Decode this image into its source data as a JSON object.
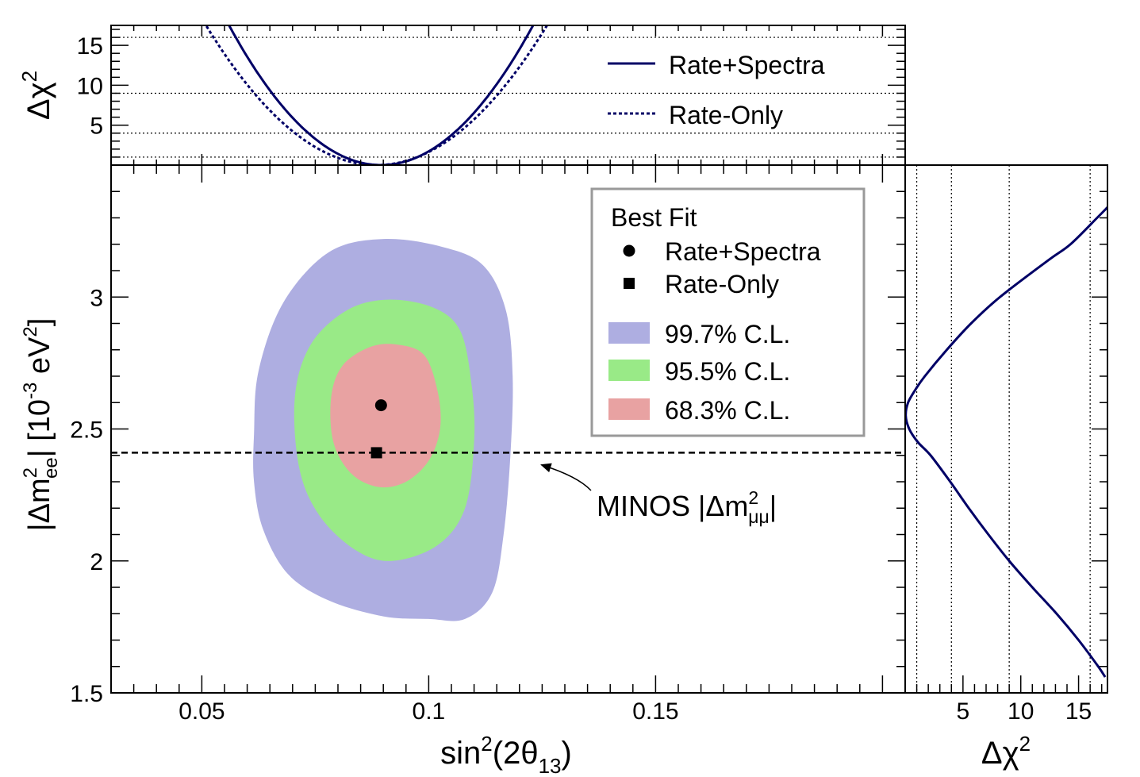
{
  "chart_data": [
    {
      "panel": "main",
      "type": "contour",
      "xlabel": {
        "main": "sin",
        "sup": "2",
        "mid": "(2θ",
        "sub": "13",
        "end": ")"
      },
      "ylabel": {
        "pre": "|Δm",
        "sup": "2",
        "sub": "ee",
        "mid": "| [10",
        "sup2": "-3",
        "end": " eV",
        "sup3": "2",
        "close": "]"
      },
      "xlim": [
        0.03,
        0.205
      ],
      "ylim": [
        1.5,
        3.5
      ],
      "xticks": [
        {
          "v": 0.05,
          "label": "0.05"
        },
        {
          "v": 0.1,
          "label": "0.1"
        },
        {
          "v": 0.15,
          "label": "0.15"
        }
      ],
      "yticks": [
        {
          "v": 1.5,
          "label": "1.5"
        },
        {
          "v": 2.0,
          "label": "2"
        },
        {
          "v": 2.5,
          "label": "2.5"
        },
        {
          "v": 3.0,
          "label": "3"
        }
      ],
      "regions": [
        {
          "name": "99.7% C.L.",
          "color": "#aeaee1",
          "points": [
            [
              0.0615,
              2.48
            ],
            [
              0.0625,
              2.72
            ],
            [
              0.068,
              2.98
            ],
            [
              0.078,
              3.17
            ],
            [
              0.09,
              3.22
            ],
            [
              0.103,
              3.19
            ],
            [
              0.112,
              3.12
            ],
            [
              0.117,
              2.95
            ],
            [
              0.1185,
              2.7
            ],
            [
              0.118,
              2.4
            ],
            [
              0.1165,
              2.1
            ],
            [
              0.114,
              1.88
            ],
            [
              0.108,
              1.78
            ],
            [
              0.1,
              1.78
            ],
            [
              0.09,
              1.79
            ],
            [
              0.078,
              1.85
            ],
            [
              0.069,
              1.95
            ],
            [
              0.0635,
              2.12
            ],
            [
              0.0615,
              2.3
            ]
          ]
        },
        {
          "name": "95.5% C.L.",
          "color": "#99ea87",
          "points": [
            [
              0.0705,
              2.62
            ],
            [
              0.074,
              2.82
            ],
            [
              0.082,
              2.95
            ],
            [
              0.091,
              2.99
            ],
            [
              0.101,
              2.96
            ],
            [
              0.107,
              2.87
            ],
            [
              0.1095,
              2.66
            ],
            [
              0.11,
              2.45
            ],
            [
              0.108,
              2.2
            ],
            [
              0.102,
              2.06
            ],
            [
              0.092,
              2.0
            ],
            [
              0.084,
              2.04
            ],
            [
              0.076,
              2.17
            ],
            [
              0.0715,
              2.35
            ]
          ]
        },
        {
          "name": "68.3% C.L.",
          "color": "#e8a2a2",
          "points": [
            [
              0.0785,
              2.62
            ],
            [
              0.081,
              2.74
            ],
            [
              0.087,
              2.81
            ],
            [
              0.093,
              2.82
            ],
            [
              0.099,
              2.78
            ],
            [
              0.102,
              2.64
            ],
            [
              0.1025,
              2.5
            ],
            [
              0.1,
              2.38
            ],
            [
              0.095,
              2.3
            ],
            [
              0.089,
              2.28
            ],
            [
              0.083,
              2.33
            ],
            [
              0.079,
              2.45
            ]
          ]
        }
      ],
      "best_fit": [
        {
          "name": "Rate+Spectra",
          "marker": "circle",
          "x": 0.0895,
          "y": 2.59
        },
        {
          "name": "Rate-Only",
          "marker": "square",
          "x": 0.0885,
          "y": 2.41
        }
      ],
      "reference_line": {
        "y": 2.41,
        "style": "dashed"
      },
      "annotation": {
        "text": "MINOS |Δm",
        "sup": "2",
        "sub": "μμ",
        "end": "|",
        "arrow_to": {
          "x": 0.1245,
          "y": 2.4
        }
      },
      "legend": {
        "title": "Best Fit",
        "entries": [
          {
            "label": "Rate+Spectra",
            "marker": "circle"
          },
          {
            "label": "Rate-Only",
            "marker": "square"
          },
          {
            "label": "99.7% C.L.",
            "color": "#aeaee1"
          },
          {
            "label": "95.5% C.L.",
            "color": "#99ea87"
          },
          {
            "label": "68.3% C.L.",
            "color": "#e8a2a2"
          }
        ],
        "placement": "top-right"
      }
    },
    {
      "panel": "top",
      "type": "line",
      "ylabel": {
        "main": "Δχ",
        "sup": "2"
      },
      "xlim": [
        0.03,
        0.205
      ],
      "ylim": [
        0,
        17.5
      ],
      "yticks": [
        {
          "v": 5,
          "label": "5"
        },
        {
          "v": 10,
          "label": "10"
        },
        {
          "v": 15,
          "label": "15"
        }
      ],
      "reference_levels": [
        1,
        4,
        9,
        16
      ],
      "series": [
        {
          "name": "Rate+Spectra",
          "style": "solid",
          "color": "#000066",
          "center": 0.0895,
          "curvature": 15600
        },
        {
          "name": "Rate-Only",
          "style": "dotted",
          "color": "#000066",
          "center": 0.0885,
          "curvature": 12400
        }
      ],
      "legend": {
        "entries": [
          {
            "label": "Rate+Spectra",
            "style": "solid"
          },
          {
            "label": "Rate-Only",
            "style": "dotted"
          }
        ],
        "placement": "top-right"
      }
    },
    {
      "panel": "right",
      "type": "line",
      "xlabel": {
        "main": "Δχ",
        "sup": "2"
      },
      "xlim": [
        0,
        17.5
      ],
      "ylim": [
        1.5,
        3.5
      ],
      "xticks": [
        {
          "v": 5,
          "label": "5"
        },
        {
          "v": 10,
          "label": "10"
        },
        {
          "v": 15,
          "label": "15"
        }
      ],
      "reference_levels": [
        1,
        4,
        9,
        16
      ],
      "series": [
        {
          "name": "Rate+Spectra",
          "style": "solid",
          "color": "#000066",
          "points": [
            [
              3.34,
              17.5
            ],
            [
              3.3,
              16.6
            ],
            [
              3.2,
              14.3
            ],
            [
              3.14,
              12.4
            ],
            [
              3.0,
              8.2
            ],
            [
              2.9,
              5.7
            ],
            [
              2.8,
              3.6
            ],
            [
              2.7,
              1.7
            ],
            [
              2.65,
              0.9
            ],
            [
              2.6,
              0.25
            ],
            [
              2.55,
              0.05
            ],
            [
              2.5,
              0.35
            ],
            [
              2.45,
              1.1
            ],
            [
              2.4,
              2.2
            ],
            [
              2.3,
              3.9
            ],
            [
              2.2,
              5.5
            ],
            [
              2.1,
              7.2
            ],
            [
              2.0,
              9.0
            ],
            [
              1.9,
              11.0
            ],
            [
              1.8,
              13.1
            ],
            [
              1.7,
              15.0
            ],
            [
              1.6,
              16.7
            ],
            [
              1.56,
              17.3
            ]
          ]
        }
      ]
    }
  ]
}
